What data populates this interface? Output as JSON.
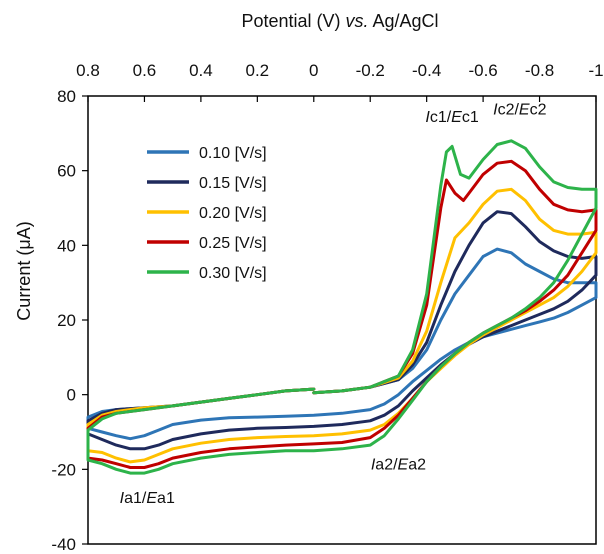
{
  "chart_data": {
    "type": "line",
    "title": "",
    "xlabel": {
      "before": "Potential (V) ",
      "italic": "vs.",
      "after": " Ag/AgCl"
    },
    "ylabel": "Current (μA)",
    "x_axis_position": "top",
    "x_reversed": true,
    "xlim": [
      0.8,
      -1.0
    ],
    "ylim": [
      -40,
      80
    ],
    "x_ticks": [
      0.8,
      0.6,
      0.4,
      0.2,
      0,
      -0.2,
      -0.4,
      -0.6,
      -0.8,
      -1
    ],
    "x_tick_labels": [
      "0.8",
      "0.6",
      "0.4",
      "0.2",
      "0",
      "-0.2",
      "-0.4",
      "-0.6",
      "-0.8",
      "-1"
    ],
    "y_ticks": [
      -40,
      -20,
      0,
      20,
      40,
      60,
      80
    ],
    "y_tick_labels": [
      "-40",
      "-20",
      "0",
      "20",
      "40",
      "60",
      "80"
    ],
    "grid": false,
    "legend_position": "upper-left",
    "series": [
      {
        "name": "0.10 [V/s]",
        "color": "#2e75b6",
        "x": [
          0,
          -0.1,
          -0.2,
          -0.3,
          -0.35,
          -0.4,
          -0.45,
          -0.5,
          -0.55,
          -0.6,
          -0.65,
          -0.7,
          -0.75,
          -0.8,
          -0.85,
          -0.9,
          -0.95,
          -1.0,
          -1.0,
          -0.95,
          -0.9,
          -0.85,
          -0.8,
          -0.75,
          -0.7,
          -0.65,
          -0.6,
          -0.55,
          -0.5,
          -0.45,
          -0.4,
          -0.35,
          -0.3,
          -0.25,
          -0.2,
          -0.1,
          0,
          0.1,
          0.2,
          0.3,
          0.4,
          0.5,
          0.55,
          0.6,
          0.65,
          0.7,
          0.75,
          0.8,
          0.8,
          0.75,
          0.7,
          0.6,
          0.5,
          0.4,
          0.3,
          0.2,
          0.1,
          0
        ],
        "y": [
          0.5,
          1,
          2,
          4,
          7,
          12,
          20,
          27,
          32,
          37,
          39,
          38,
          35,
          33,
          31,
          30,
          30,
          30,
          26,
          24,
          22,
          20.5,
          19.5,
          18.5,
          17.5,
          16.5,
          15.5,
          14,
          12,
          9.5,
          6.5,
          3.5,
          0,
          -2.5,
          -4,
          -5,
          -5.5,
          -5.8,
          -6,
          -6.2,
          -6.8,
          -8,
          -9.5,
          -11,
          -11.8,
          -11,
          -10,
          -9,
          -6,
          -4.5,
          -4,
          -3.5,
          -3,
          -2,
          -1,
          0,
          1,
          1.5
        ]
      },
      {
        "name": "0.15 [V/s]",
        "color": "#1f2a5c",
        "x": [
          0,
          -0.1,
          -0.2,
          -0.3,
          -0.35,
          -0.4,
          -0.45,
          -0.5,
          -0.55,
          -0.6,
          -0.65,
          -0.7,
          -0.75,
          -0.8,
          -0.85,
          -0.9,
          -0.95,
          -1.0,
          -1.0,
          -0.95,
          -0.9,
          -0.85,
          -0.8,
          -0.75,
          -0.7,
          -0.65,
          -0.6,
          -0.55,
          -0.5,
          -0.45,
          -0.4,
          -0.35,
          -0.3,
          -0.25,
          -0.2,
          -0.1,
          0,
          0.1,
          0.2,
          0.3,
          0.4,
          0.5,
          0.55,
          0.6,
          0.65,
          0.7,
          0.75,
          0.8,
          0.8,
          0.75,
          0.7,
          0.6,
          0.5,
          0.4,
          0.3,
          0.2,
          0.1,
          0
        ],
        "y": [
          0.5,
          1,
          2,
          4,
          8,
          14,
          24,
          33,
          40,
          46,
          49,
          48.5,
          45,
          41,
          38.5,
          37,
          36.5,
          37,
          32,
          28,
          25,
          23,
          21.5,
          20,
          18.5,
          17,
          15.5,
          13.5,
          11,
          8,
          4.5,
          1,
          -3,
          -5.5,
          -7,
          -8,
          -8.5,
          -8.8,
          -9,
          -9.5,
          -10.5,
          -12,
          -13.5,
          -14.5,
          -14.5,
          -13.5,
          -12,
          -10.5,
          -7,
          -5,
          -4,
          -3.5,
          -3,
          -2,
          -1,
          0,
          1,
          1.5
        ]
      },
      {
        "name": "0.20 [V/s]",
        "color": "#ffc000",
        "x": [
          0,
          -0.1,
          -0.2,
          -0.3,
          -0.35,
          -0.4,
          -0.45,
          -0.5,
          -0.55,
          -0.6,
          -0.65,
          -0.7,
          -0.75,
          -0.8,
          -0.85,
          -0.9,
          -0.95,
          -1.0,
          -1.0,
          -0.95,
          -0.9,
          -0.85,
          -0.8,
          -0.75,
          -0.7,
          -0.65,
          -0.6,
          -0.55,
          -0.5,
          -0.45,
          -0.4,
          -0.35,
          -0.3,
          -0.25,
          -0.2,
          -0.1,
          0,
          0.1,
          0.2,
          0.3,
          0.4,
          0.5,
          0.55,
          0.6,
          0.65,
          0.7,
          0.75,
          0.8,
          0.8,
          0.75,
          0.7,
          0.6,
          0.5,
          0.4,
          0.3,
          0.2,
          0.1,
          0
        ],
        "y": [
          0.5,
          1,
          2,
          4.5,
          9,
          17,
          30,
          42,
          46,
          51,
          54.5,
          55,
          52,
          47,
          44,
          43,
          43,
          43.5,
          38,
          33,
          29,
          26,
          24,
          22,
          20,
          18,
          16,
          13.5,
          10.5,
          7,
          3.5,
          -1,
          -5,
          -8,
          -9.5,
          -10.5,
          -11,
          -11.2,
          -11.5,
          -12,
          -13,
          -14.5,
          -16,
          -17.5,
          -18,
          -17,
          -15.5,
          -15,
          -8,
          -5.5,
          -4.5,
          -3.5,
          -3,
          -2,
          -1,
          0,
          1,
          1.5
        ]
      },
      {
        "name": "0.25 [V/s]",
        "color": "#c00000",
        "x": [
          0,
          -0.1,
          -0.2,
          -0.3,
          -0.35,
          -0.4,
          -0.45,
          -0.47,
          -0.5,
          -0.53,
          -0.55,
          -0.6,
          -0.65,
          -0.7,
          -0.75,
          -0.8,
          -0.85,
          -0.9,
          -0.95,
          -1.0,
          -1.0,
          -0.95,
          -0.9,
          -0.85,
          -0.8,
          -0.75,
          -0.7,
          -0.65,
          -0.6,
          -0.55,
          -0.5,
          -0.45,
          -0.4,
          -0.35,
          -0.3,
          -0.25,
          -0.2,
          -0.1,
          0,
          0.1,
          0.2,
          0.3,
          0.4,
          0.5,
          0.55,
          0.6,
          0.65,
          0.7,
          0.75,
          0.8,
          0.8,
          0.75,
          0.7,
          0.6,
          0.5,
          0.4,
          0.3,
          0.2,
          0.1,
          0
        ],
        "y": [
          0.5,
          1,
          2,
          5,
          11,
          24,
          50,
          57.5,
          54,
          52,
          54,
          59,
          62,
          62.5,
          60,
          55,
          51,
          49.5,
          49,
          49.5,
          44,
          38,
          32,
          28,
          25,
          22.5,
          20.5,
          18.5,
          16.5,
          14,
          11,
          7.5,
          3.5,
          -1,
          -5.5,
          -9,
          -11.5,
          -12.8,
          -13.2,
          -13.5,
          -14,
          -14.5,
          -15.5,
          -17,
          -18.5,
          -19.5,
          -19.5,
          -18.5,
          -17.5,
          -17,
          -9,
          -6,
          -5,
          -4,
          -3,
          -2,
          -1,
          0,
          1,
          1.5
        ]
      },
      {
        "name": "0.30 [V/s]",
        "color": "#2db34a",
        "x": [
          0,
          -0.1,
          -0.2,
          -0.3,
          -0.35,
          -0.4,
          -0.45,
          -0.47,
          -0.49,
          -0.52,
          -0.55,
          -0.6,
          -0.65,
          -0.7,
          -0.75,
          -0.8,
          -0.85,
          -0.9,
          -0.95,
          -1.0,
          -1.0,
          -0.95,
          -0.9,
          -0.85,
          -0.8,
          -0.75,
          -0.7,
          -0.65,
          -0.6,
          -0.55,
          -0.5,
          -0.45,
          -0.4,
          -0.35,
          -0.3,
          -0.25,
          -0.2,
          -0.1,
          0,
          0.1,
          0.2,
          0.3,
          0.4,
          0.5,
          0.55,
          0.6,
          0.65,
          0.7,
          0.75,
          0.8,
          0.8,
          0.75,
          0.7,
          0.6,
          0.5,
          0.4,
          0.3,
          0.2,
          0.1,
          0
        ],
        "y": [
          0.5,
          1,
          2,
          5,
          12,
          27,
          56,
          65,
          66.5,
          59,
          58,
          63,
          67,
          68,
          66,
          61,
          57,
          55.5,
          55,
          55,
          50,
          43,
          36,
          30,
          26,
          23,
          20.5,
          18.5,
          16.5,
          14,
          11,
          7.5,
          3.5,
          -1.5,
          -6.5,
          -11,
          -13.5,
          -14.5,
          -15,
          -15,
          -15.5,
          -16,
          -17,
          -18.5,
          -20,
          -21,
          -21,
          -20,
          -18.5,
          -17.5,
          -9.5,
          -6.5,
          -5,
          -4,
          -3,
          -2,
          -1,
          0,
          1,
          1.5
        ]
      }
    ],
    "annotations": [
      {
        "italic": "I",
        "rest1": "c1/",
        "italic2": "E",
        "rest2": "c1",
        "x": -0.49,
        "y": 73
      },
      {
        "italic": "I",
        "rest1": "c2/",
        "italic2": "E",
        "rest2": "c2",
        "x": -0.73,
        "y": 75
      },
      {
        "italic": "I",
        "rest1": "a2/",
        "italic2": "E",
        "rest2": "a2",
        "x": -0.3,
        "y": -20
      },
      {
        "italic": "I",
        "rest1": "a1/",
        "italic2": "E",
        "rest2": "a1",
        "x": 0.59,
        "y": -29
      }
    ]
  }
}
